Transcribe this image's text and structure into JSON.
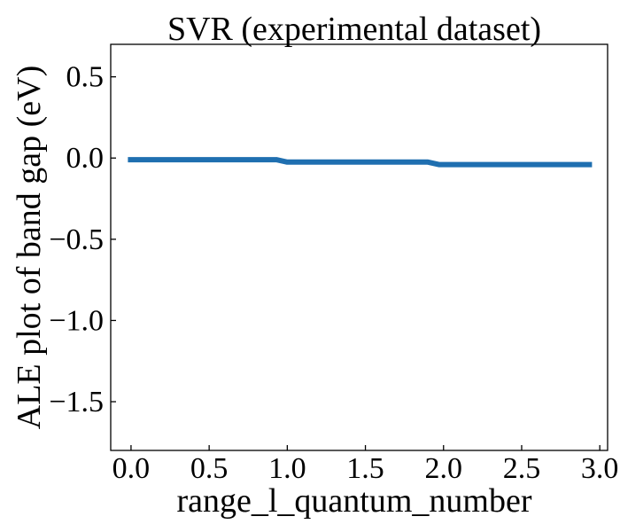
{
  "chart_data": {
    "type": "line",
    "title": "SVR (experimental dataset)",
    "xlabel": "range_l_quantum_number",
    "ylabel": "ALE plot of band gap (eV)",
    "xlim": [
      -0.13,
      3.05
    ],
    "ylim": [
      -1.8,
      0.7
    ],
    "xticks": [
      0.0,
      0.5,
      1.0,
      1.5,
      2.0,
      2.5,
      3.0
    ],
    "xtick_labels": [
      "0.0",
      "0.5",
      "1.0",
      "1.5",
      "2.0",
      "2.5",
      "3.0"
    ],
    "yticks": [
      0.5,
      0.0,
      -0.5,
      -1.0,
      -1.5
    ],
    "ytick_labels": [
      "0.5",
      "0.0",
      "−0.5",
      "−1.0",
      "−1.5"
    ],
    "grid": false,
    "series": [
      {
        "color": "#1f6fb0",
        "x": [
          -0.02,
          0.93,
          1.0,
          1.9,
          1.97,
          2.95
        ],
        "y": [
          -0.01,
          -0.01,
          -0.025,
          -0.025,
          -0.04,
          -0.04
        ]
      }
    ]
  }
}
